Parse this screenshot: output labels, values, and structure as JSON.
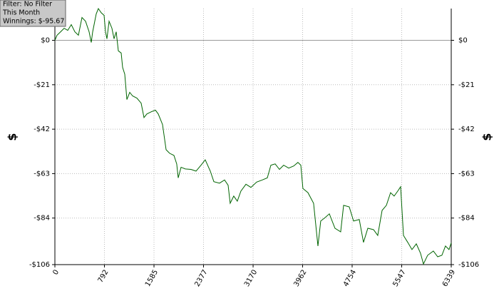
{
  "chart_data": {
    "type": "line",
    "ylabel": "$",
    "annotations": [
      "Filter: No Filter",
      "This Month",
      "Winnings: $-95.67"
    ],
    "xlim": [
      0,
      6339
    ],
    "xticks": [
      0,
      792,
      1585,
      2377,
      3170,
      3962,
      4754,
      5547,
      6339
    ],
    "ylim": [
      -106,
      15
    ],
    "yticks": [
      {
        "value": 0,
        "label": "$0"
      },
      {
        "value": -21,
        "label": "-$21"
      },
      {
        "value": -42,
        "label": "-$42"
      },
      {
        "value": -63,
        "label": "-$63"
      },
      {
        "value": -84,
        "label": "-$84"
      },
      {
        "value": -106,
        "label": "-$106"
      }
    ],
    "grid": true,
    "series": [
      {
        "color": "#006400",
        "x": [
          0,
          34,
          91,
          148,
          205,
          262,
          319,
          376,
          433,
          490,
          547,
          581,
          604,
          661,
          695,
          741,
          787,
          809,
          832,
          866,
          912,
          946,
          980,
          1015,
          1060,
          1083,
          1117,
          1151,
          1197,
          1243,
          1311,
          1379,
          1425,
          1471,
          1539,
          1607,
          1653,
          1721,
          1778,
          1835,
          1904,
          1949,
          1972,
          2018,
          2086,
          2177,
          2257,
          2337,
          2405,
          2485,
          2542,
          2633,
          2713,
          2770,
          2804,
          2861,
          2918,
          2975,
          3055,
          3135,
          3226,
          3317,
          3397,
          3454,
          3523,
          3591,
          3659,
          3739,
          3819,
          3887,
          3933,
          3967,
          4047,
          4138,
          4207,
          4252,
          4321,
          4389,
          4480,
          4571,
          4617,
          4708,
          4777,
          4868,
          4936,
          5005,
          5096,
          5164,
          5233,
          5301,
          5369,
          5426,
          5483,
          5529,
          5575,
          5643,
          5711,
          5780,
          5848,
          5894,
          5962,
          6053,
          6122,
          6190,
          6247,
          6304,
          6339
        ],
        "values": [
          0,
          2.4,
          4,
          5.7,
          4.7,
          7.4,
          4,
          2.4,
          10.8,
          9,
          4,
          -1,
          4,
          12.5,
          15,
          13,
          11.8,
          4,
          0.7,
          9,
          5.7,
          0.7,
          4,
          -5,
          -6,
          -12.8,
          -16,
          -28,
          -24.6,
          -26.3,
          -27.3,
          -29.7,
          -36.5,
          -34.8,
          -33.8,
          -33,
          -34.8,
          -39.8,
          -51.7,
          -53.4,
          -54.4,
          -58.4,
          -65,
          -60,
          -60.8,
          -61,
          -61.8,
          -59,
          -56.5,
          -61.8,
          -66.8,
          -67.5,
          -66,
          -68.5,
          -77,
          -73.6,
          -76,
          -71.3,
          -68,
          -69.5,
          -67,
          -66,
          -65,
          -59,
          -58.4,
          -61,
          -59,
          -60.4,
          -59.4,
          -57.7,
          -59,
          -70,
          -72,
          -77,
          -97.2,
          -85.4,
          -83.8,
          -82,
          -88.8,
          -90.5,
          -78,
          -78.7,
          -85.4,
          -84.7,
          -95.5,
          -88.8,
          -89.5,
          -92.2,
          -80.4,
          -78,
          -72,
          -73.6,
          -71.3,
          -69.2,
          -92.2,
          -95.5,
          -98.9,
          -96.2,
          -100.6,
          -105.7,
          -101.6,
          -99.6,
          -102.3,
          -101.6,
          -97.2,
          -98.9,
          -95.67
        ]
      }
    ]
  }
}
